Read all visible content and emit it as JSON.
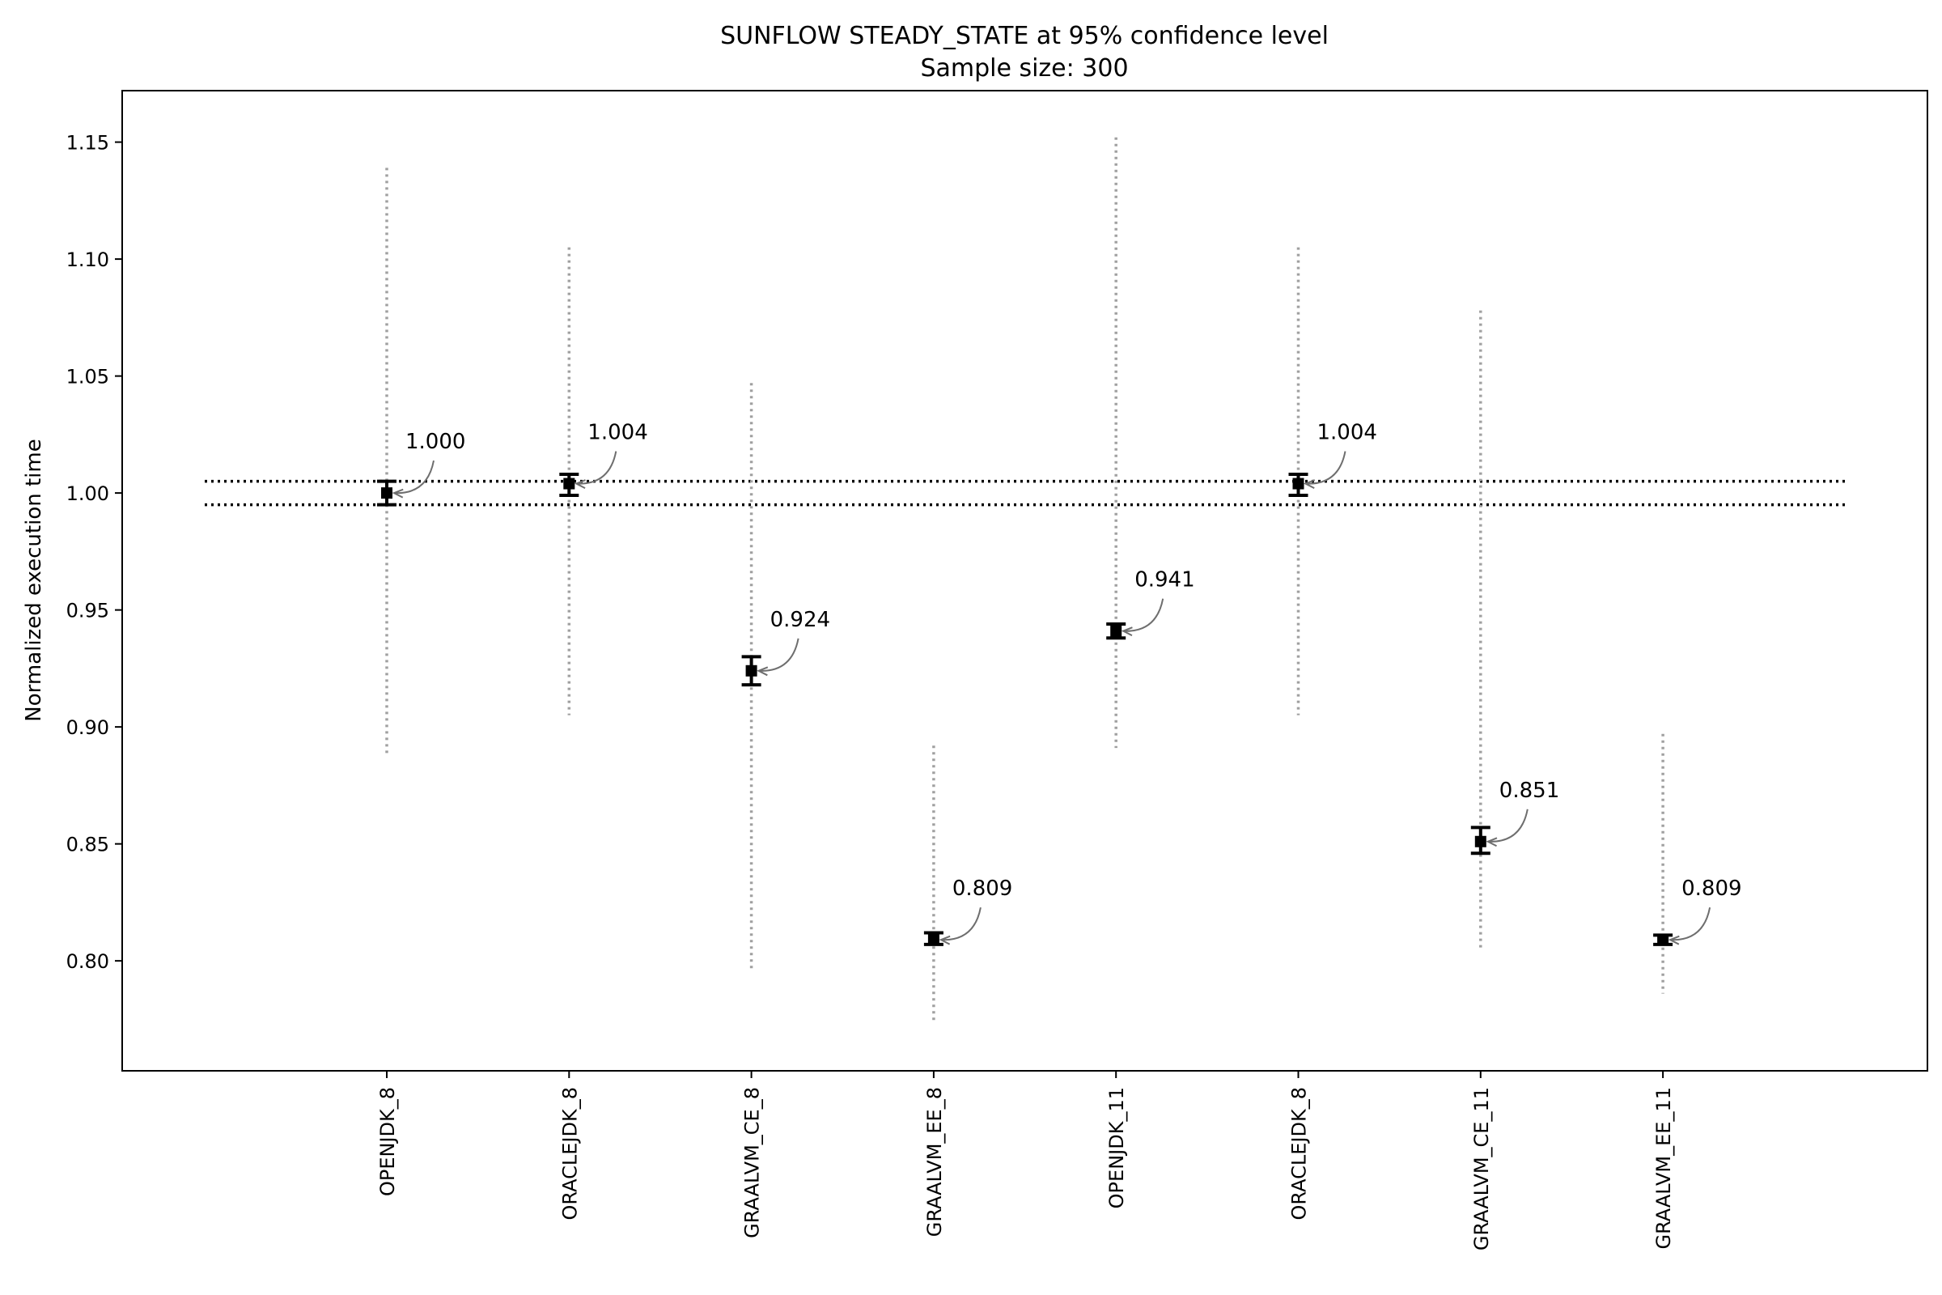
{
  "chart_data": {
    "type": "errorbar",
    "title": "SUNFLOW STEADY_STATE at 95% confidence level",
    "subtitle": "Sample size: 300",
    "xlabel": "",
    "ylabel": "Normalized execution time",
    "ylim": [
      0.753,
      1.172
    ],
    "yticks": [
      "0.80",
      "0.85",
      "0.90",
      "0.95",
      "1.00",
      "1.05",
      "1.10",
      "1.15"
    ],
    "ytick_values": [
      0.8,
      0.85,
      0.9,
      0.95,
      1.0,
      1.05,
      1.1,
      1.15
    ],
    "categories": [
      "OPENJDK_8",
      "ORACLEJDK_8",
      "GRAALVM_CE_8",
      "GRAALVM_EE_8",
      "OPENJDK_11",
      "ORACLEJDK_8",
      "GRAALVM_CE_11",
      "GRAALVM_EE_11"
    ],
    "mean": [
      1.0,
      1.004,
      0.924,
      0.809,
      0.941,
      1.004,
      0.851,
      0.809
    ],
    "labels": [
      "1.000",
      "1.004",
      "0.924",
      "0.809",
      "0.941",
      "1.004",
      "0.851",
      "0.809"
    ],
    "ci_low": [
      0.995,
      0.999,
      0.918,
      0.807,
      0.938,
      0.999,
      0.846,
      0.807
    ],
    "ci_high": [
      1.005,
      1.008,
      0.93,
      0.812,
      0.944,
      1.008,
      0.857,
      0.811
    ],
    "range_low": [
      0.888,
      0.905,
      0.796,
      0.773,
      0.891,
      0.905,
      0.805,
      0.786
    ],
    "range_high": [
      1.139,
      1.105,
      1.047,
      0.892,
      1.152,
      1.105,
      1.078,
      0.897
    ],
    "reference_lines": [
      1.005,
      0.995
    ],
    "grid": false,
    "colors": {
      "mean": "#000000",
      "range": "#a0a0a0",
      "reference": "#000000",
      "arrow": "#6e6e6e"
    }
  }
}
